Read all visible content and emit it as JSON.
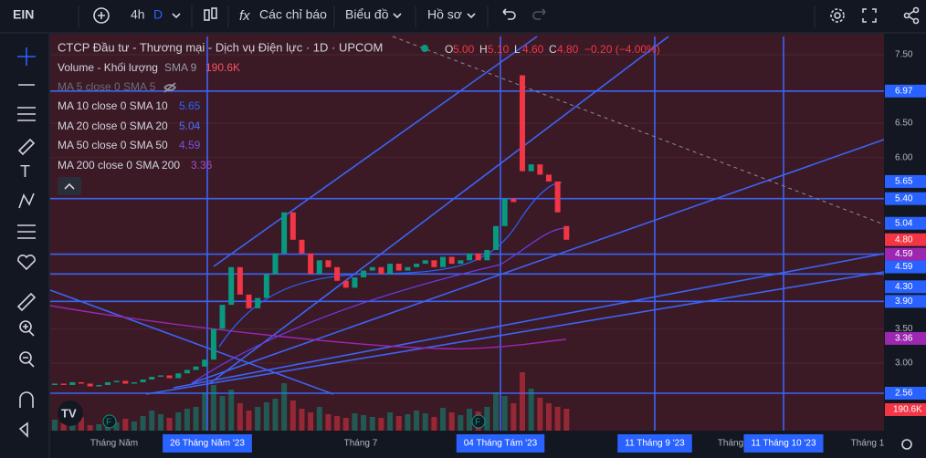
{
  "toolbar": {
    "symbol": "EIN",
    "interval": "4h",
    "period": "D",
    "indicators": "Các chỉ báo",
    "chart_menu": "Biểu đồ",
    "profile": "Hồ sơ"
  },
  "legend": {
    "title": "CTCP Đầu tư - Thương mại - Dịch vụ Điện lực · 1D · UPCOM",
    "ohlc": [
      {
        "key": "O",
        "value": "5.00"
      },
      {
        "key": "H",
        "value": "5.10"
      },
      {
        "key": "L",
        "value": "4.60"
      },
      {
        "key": "C",
        "value": "4.80"
      }
    ],
    "change": "−0.20 (−4.00%)",
    "indicators": [
      {
        "name": "Volume - Khối lượng",
        "params": "SMA 9",
        "value": "190.6K"
      },
      {
        "name": "MA 5 close 0 SMA 5"
      },
      {
        "name": "MA 10 close 0 SMA 10",
        "value": "5.65"
      },
      {
        "name": "MA 20 close 0 SMA 20",
        "value": "5.04"
      },
      {
        "name": "MA 50 close 0 SMA 50",
        "value": "4.59"
      },
      {
        "name": "MA 200 close 0 SMA 200",
        "value": "3.36"
      }
    ]
  },
  "price_axis": {
    "ticks": [
      {
        "value": 7.5,
        "label": "7.50"
      },
      {
        "value": 6.5,
        "label": "6.50"
      },
      {
        "value": 6.0,
        "label": "6.00"
      },
      {
        "value": 3.5,
        "label": "3.50"
      },
      {
        "value": 3.0,
        "label": "3.00"
      }
    ],
    "markers": [
      {
        "value": 6.97,
        "label": "6.97",
        "color": "#2962ff"
      },
      {
        "value": 5.65,
        "label": "5.65",
        "color": "#2962ff"
      },
      {
        "value": 5.4,
        "label": "5.40",
        "color": "#2962ff"
      },
      {
        "value": 5.04,
        "label": "5.04",
        "color": "#2962ff"
      },
      {
        "value": 4.8,
        "label": "4.80",
        "color": "#f23645"
      },
      {
        "value": 4.59,
        "label": "4.59",
        "color": "#9c27b0"
      },
      {
        "value": 4.59,
        "label": "4.59",
        "color": "#2962ff"
      },
      {
        "value": 4.3,
        "label": "4.30",
        "color": "#2962ff"
      },
      {
        "value": 3.9,
        "label": "3.90",
        "color": "#2962ff"
      },
      {
        "value": 3.36,
        "label": "3.36",
        "color": "#9c27b0"
      },
      {
        "value": 2.56,
        "label": "2.56",
        "color": "#2962ff"
      }
    ],
    "volume_marker": "190.6K"
  },
  "horizontal_lines": [
    6.97,
    5.4,
    4.59,
    4.3,
    3.9,
    2.56
  ],
  "time_axis": [
    "Tháng Năm",
    "26 Tháng Năm '23",
    "Tháng 7",
    "04 Tháng Tám '23",
    "11 Tháng 9 '23",
    "Tháng",
    "11 Tháng 10 '23",
    "Tháng 1"
  ],
  "candles": {
    "open": [
      2.68,
      2.7,
      2.68,
      2.72,
      2.7,
      2.66,
      2.68,
      2.72,
      2.74,
      2.7,
      2.72,
      2.76,
      2.8,
      2.82,
      2.78,
      2.85,
      2.9,
      2.95,
      3.05,
      3.5,
      3.85,
      4.4,
      4.0,
      3.8,
      3.95,
      4.3,
      4.6,
      5.2,
      4.8,
      4.6,
      4.3,
      4.5,
      4.4,
      4.2,
      4.1,
      4.25,
      4.35,
      4.4,
      4.3,
      4.45,
      4.35,
      4.4,
      4.45,
      4.5,
      4.4,
      4.55,
      4.45,
      4.5,
      4.6,
      4.5,
      4.65,
      5.0,
      5.4,
      7.2,
      5.8,
      5.9,
      5.75,
      5.65,
      5.0
    ],
    "close": [
      2.7,
      2.68,
      2.72,
      2.7,
      2.66,
      2.68,
      2.72,
      2.74,
      2.7,
      2.72,
      2.76,
      2.8,
      2.82,
      2.78,
      2.85,
      2.9,
      2.95,
      3.05,
      3.5,
      3.85,
      4.4,
      4.0,
      3.8,
      3.95,
      4.3,
      4.6,
      5.2,
      4.8,
      4.6,
      4.3,
      4.5,
      4.4,
      4.2,
      4.1,
      4.25,
      4.35,
      4.4,
      4.3,
      4.45,
      4.35,
      4.4,
      4.45,
      4.5,
      4.4,
      4.55,
      4.45,
      4.5,
      4.6,
      4.5,
      4.65,
      5.0,
      5.4,
      5.35,
      5.8,
      5.9,
      5.75,
      5.65,
      5.2,
      4.8
    ],
    "volume": [
      120,
      80,
      90,
      150,
      60,
      70,
      110,
      90,
      130,
      100,
      160,
      220,
      180,
      140,
      200,
      240,
      260,
      420,
      500,
      380,
      450,
      300,
      220,
      260,
      310,
      350,
      520,
      330,
      240,
      200,
      260,
      180,
      160,
      140,
      190,
      170,
      150,
      140,
      200,
      160,
      180,
      220,
      190,
      150,
      250,
      200,
      170,
      240,
      210,
      260,
      420,
      380,
      300,
      640,
      460,
      360,
      300,
      260,
      240
    ]
  }
}
